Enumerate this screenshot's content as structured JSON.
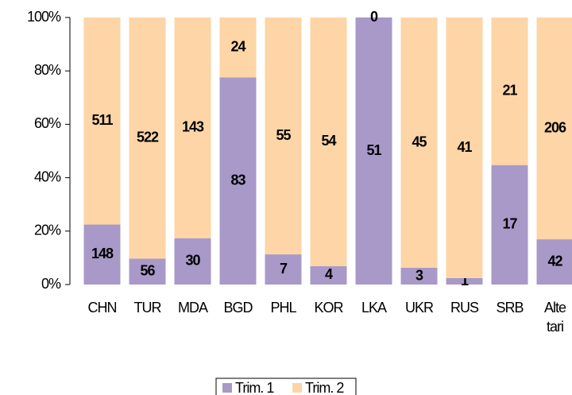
{
  "chart_data": {
    "type": "stacked_percent_bar",
    "categories": [
      "CHN",
      "TUR",
      "MDA",
      "BGD",
      "PHL",
      "KOR",
      "LKA",
      "UKR",
      "RUS",
      "SRB",
      "Alte tari"
    ],
    "series": [
      {
        "name": "Trim. 1",
        "color": "#a899c8",
        "values": [
          148,
          56,
          30,
          83,
          7,
          4,
          51,
          3,
          1,
          17,
          42
        ]
      },
      {
        "name": "Trim. 2",
        "color": "#fdd5a6",
        "values": [
          511,
          522,
          143,
          24,
          55,
          54,
          0,
          45,
          41,
          21,
          206
        ]
      }
    ],
    "ylim": [
      0,
      100
    ],
    "yticks": [
      {
        "value": 0,
        "label": "0%"
      },
      {
        "value": 20,
        "label": "20%"
      },
      {
        "value": 40,
        "label": "40%"
      },
      {
        "value": 60,
        "label": "60%"
      },
      {
        "value": 80,
        "label": "80%"
      },
      {
        "value": 100,
        "label": "100%"
      }
    ],
    "legend": "bottom"
  }
}
